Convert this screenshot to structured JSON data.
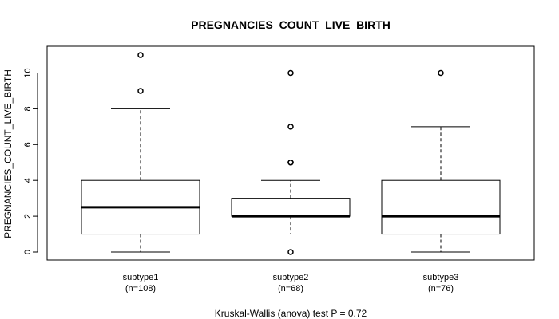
{
  "chart_data": {
    "type": "boxplot",
    "title": "PREGNANCIES_COUNT_LIVE_BIRTH",
    "xlabel": "",
    "ylabel": "PREGNANCIES_COUNT_LIVE_BIRTH",
    "ylim": [
      -0.5,
      11.5
    ],
    "yticks": [
      0,
      2,
      4,
      6,
      8,
      10
    ],
    "footnote": "Kruskal-Wallis (anova) test P = 0.72",
    "groups": [
      {
        "label": "subtype1",
        "n_label": "(n=108)",
        "whisker_low": 0,
        "q1": 1,
        "median": 2.5,
        "q3": 4,
        "whisker_high": 8,
        "outliers": [
          9,
          11
        ]
      },
      {
        "label": "subtype2",
        "n_label": "(n=68)",
        "whisker_low": 1,
        "q1": 2,
        "median": 2,
        "q3": 3,
        "whisker_high": 4,
        "outliers": [
          0,
          5,
          5,
          7,
          10
        ]
      },
      {
        "label": "subtype3",
        "n_label": "(n=76)",
        "whisker_low": 0,
        "q1": 1,
        "median": 2,
        "q3": 4,
        "whisker_high": 7,
        "outliers": [
          10
        ]
      }
    ]
  }
}
